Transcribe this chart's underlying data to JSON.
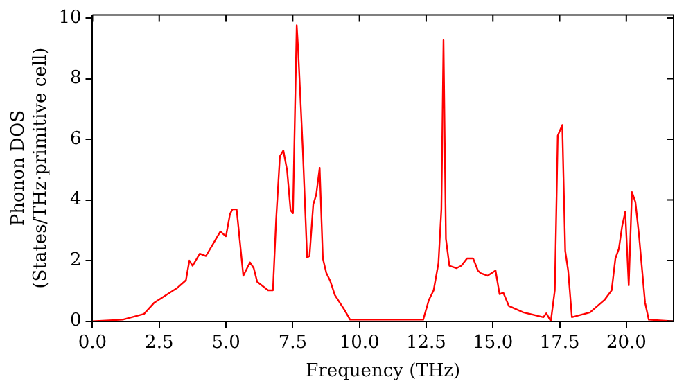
{
  "chart_data": {
    "type": "line",
    "xlabel": "Frequency (THz)",
    "ylabel": "Phonon DOS\n(States/THz·primitive cell)",
    "x": [
      0,
      1.13,
      1.93,
      2.3,
      2.47,
      3.18,
      3.5,
      3.63,
      3.75,
      4.02,
      4.25,
      4.79,
      5.0,
      5.15,
      5.24,
      5.4,
      5.65,
      5.9,
      6.04,
      6.17,
      6.58,
      6.76,
      6.88,
      7.02,
      7.15,
      7.29,
      7.42,
      7.51,
      7.65,
      7.7,
      7.88,
      8.04,
      8.13,
      8.27,
      8.38,
      8.51,
      8.63,
      8.76,
      8.9,
      9.08,
      9.44,
      9.65,
      12.39,
      12.6,
      12.78,
      12.96,
      13.07,
      13.15,
      13.24,
      13.37,
      13.64,
      13.82,
      14.03,
      14.26,
      14.44,
      14.53,
      14.8,
      15.1,
      15.25,
      15.39,
      15.6,
      16.14,
      16.89,
      17.0,
      17.17,
      17.32,
      17.43,
      17.6,
      17.71,
      17.82,
      17.96,
      18.64,
      19.18,
      19.45,
      19.59,
      19.72,
      19.84,
      19.96,
      20.09,
      20.21,
      20.34,
      20.47,
      20.7,
      20.84,
      21.77
    ],
    "series": [
      {
        "color": "#ff0000",
        "values": [
          0,
          0.05,
          0.24,
          0.6,
          0.7,
          1.1,
          1.35,
          2.0,
          1.83,
          2.23,
          2.15,
          2.96,
          2.8,
          3.53,
          3.69,
          3.69,
          1.5,
          1.94,
          1.75,
          1.3,
          1.02,
          1.02,
          3.36,
          5.44,
          5.63,
          4.98,
          3.66,
          3.56,
          9.76,
          9.03,
          5.63,
          2.1,
          2.15,
          3.85,
          4.17,
          5.06,
          2.07,
          1.59,
          1.34,
          0.86,
          0.37,
          0.05,
          0.05,
          0.7,
          1.02,
          1.91,
          3.69,
          9.27,
          2.72,
          1.83,
          1.75,
          1.83,
          2.07,
          2.07,
          1.67,
          1.59,
          1.5,
          1.67,
          0.89,
          0.94,
          0.5,
          0.29,
          0.13,
          0.26,
          0,
          1.02,
          6.12,
          6.47,
          2.32,
          1.67,
          0.13,
          0.29,
          0.7,
          1.02,
          2.07,
          2.39,
          3.12,
          3.61,
          1.18,
          4.26,
          3.93,
          2.88,
          0.62,
          0.05,
          0
        ]
      }
    ],
    "xlim": [
      0,
      21.77
    ],
    "xticks": [
      {
        "value": 0,
        "label": "0.0"
      },
      {
        "value": 2.5,
        "label": "2.5"
      },
      {
        "value": 5,
        "label": "5.0"
      },
      {
        "value": 7.5,
        "label": "7.5"
      },
      {
        "value": 10,
        "label": "10.0"
      },
      {
        "value": 12.5,
        "label": "12.5"
      },
      {
        "value": 15,
        "label": "15.0"
      },
      {
        "value": 17.5,
        "label": "17.5"
      },
      {
        "value": 20,
        "label": "20.0"
      }
    ],
    "ylim": [
      0,
      10.1
    ],
    "yticks": [
      0,
      2,
      4,
      6,
      8,
      10
    ],
    "grid": false,
    "legend": false,
    "marker": "none",
    "line_style": "solid"
  }
}
